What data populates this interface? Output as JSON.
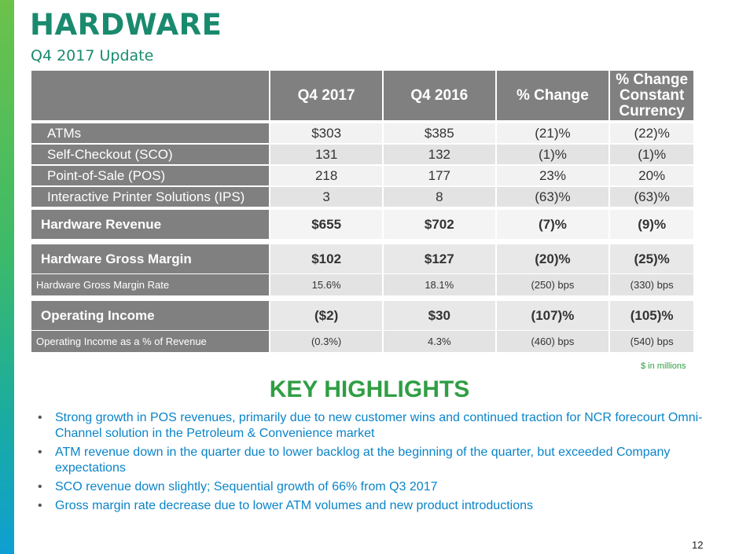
{
  "header": {
    "title": "HARDWARE",
    "subtitle": "Q4 2017 Update"
  },
  "table": {
    "columns": [
      "",
      "Q4 2017",
      "Q4 2016",
      "% Change",
      "% Change Constant Currency"
    ],
    "currency_header_lines": [
      "% Change",
      "Constant",
      "Currency"
    ],
    "items": [
      {
        "label": "ATMs",
        "q4_2017": "$303",
        "q4_2016": "$385",
        "change": "(21)%",
        "cc": "(22)%"
      },
      {
        "label": "Self-Checkout (SCO)",
        "q4_2017": "131",
        "q4_2016": "132",
        "change": "(1)%",
        "cc": "(1)%"
      },
      {
        "label": "Point-of-Sale (POS)",
        "q4_2017": "218",
        "q4_2016": "177",
        "change": "23%",
        "cc": "20%"
      },
      {
        "label": "Interactive Printer Solutions (IPS)",
        "q4_2017": "3",
        "q4_2016": "8",
        "change": "(63)%",
        "cc": "(63)%"
      }
    ],
    "revenue": {
      "label": "Hardware Revenue",
      "q4_2017": "$655",
      "q4_2016": "$702",
      "change": "(7)%",
      "cc": "(9)%"
    },
    "gross_margin": {
      "label": "Hardware Gross Margin",
      "q4_2017": "$102",
      "q4_2016": "$127",
      "change": "(20)%",
      "cc": "(25)%"
    },
    "gross_margin_rate": {
      "label": "Hardware Gross Margin Rate",
      "q4_2017": "15.6%",
      "q4_2016": "18.1%",
      "change": "(250) bps",
      "cc": "(330) bps"
    },
    "operating_income": {
      "label": "Operating Income",
      "q4_2017": "($2)",
      "q4_2016": "$30",
      "change": "(107)%",
      "cc": "(105)%"
    },
    "operating_income_pct": {
      "label": "Operating Income as a % of Revenue",
      "q4_2017": "(0.3%)",
      "q4_2016": "4.3%",
      "change": "(460) bps",
      "cc": "(540) bps"
    },
    "note": "$ in millions"
  },
  "highlights": {
    "title": "KEY HIGHLIGHTS",
    "bullet_char": "•",
    "items": [
      "Strong growth in POS revenues, primarily due to new customer wins and continued traction for NCR forecourt Omni-Channel solution in the Petroleum & Convenience market",
      "ATM revenue down in the quarter due to lower backlog at the beginning of the quarter, but exceeded Company expectations",
      "SCO revenue down slightly; Sequential growth of 66% from Q3 2017",
      "Gross margin rate decrease due to lower ATM volumes and new product introductions"
    ]
  },
  "footer": {
    "page_number": "12"
  },
  "colors": {
    "accent_green": "#2f9e44",
    "title_teal": "#1a8a6e",
    "bullet_blue": "#0a84c9",
    "header_gray": "#808080"
  }
}
